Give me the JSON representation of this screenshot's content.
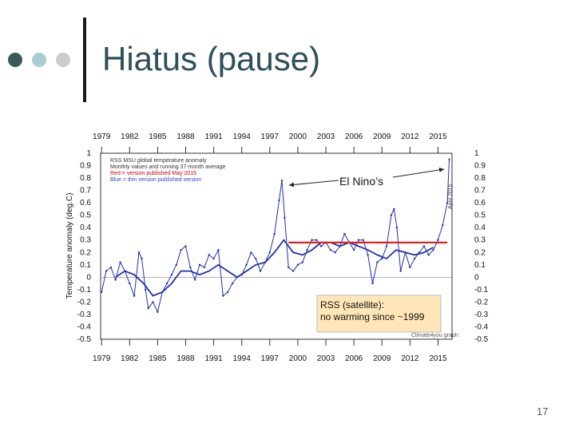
{
  "slide": {
    "title": "Hiatus (pause)",
    "page_number": "17",
    "bullet_colors": [
      "#3a5a5a",
      "#a9cdd2",
      "#cccccc"
    ]
  },
  "chart_data": {
    "type": "line",
    "ylabel": "Temperature anomaly (deg.C)",
    "xlim": [
      1978.9,
      2016.5
    ],
    "ylim": [
      -0.5,
      1.0
    ],
    "x_ticks": [
      "1979",
      "1982",
      "1985",
      "1988",
      "1991",
      "1994",
      "1997",
      "2000",
      "2003",
      "2006",
      "2009",
      "2012",
      "2015"
    ],
    "y_ticks_left": [
      "1",
      "0.9",
      "0.8",
      "0.7",
      "0.6",
      "0.5",
      "0.4",
      "0.3",
      "0.2",
      "0.1",
      "0",
      "-0.1",
      "-0.2",
      "-0.3",
      "-0.4",
      "-0.5"
    ],
    "y_ticks_right": [
      "1",
      "0.9",
      "0.8",
      "0.7",
      "0.6",
      "0.5",
      "0.4",
      "0.3",
      "0.2",
      "0.1",
      "0",
      "-0.1",
      "-0.2",
      "-0.3",
      "-0.4",
      "-0.5"
    ],
    "legend": [
      {
        "text": "RSS MSU global temperature anomaly",
        "color": "#333333"
      },
      {
        "text": "Monthly values and running 37-month average",
        "color": "#333333"
      },
      {
        "text": "Red = version published May 2015",
        "color": "#cc0000"
      },
      {
        "text": "Blue = thin version published version",
        "color": "#3344cc"
      }
    ],
    "vertical_note": "April 2015",
    "credit": "Climate4you graph",
    "series": [
      {
        "name": "Monthly values",
        "color": "#2233aa",
        "x": [
          1979.0,
          1979.5,
          1980.0,
          1980.5,
          1981.0,
          1981.5,
          1982.0,
          1982.5,
          1983.0,
          1983.3,
          1983.7,
          1984.0,
          1984.5,
          1985.0,
          1985.5,
          1986.0,
          1986.5,
          1987.0,
          1987.5,
          1988.0,
          1988.5,
          1989.0,
          1989.5,
          1990.0,
          1990.5,
          1991.0,
          1991.5,
          1992.0,
          1992.5,
          1993.0,
          1993.5,
          1994.0,
          1994.5,
          1995.0,
          1995.5,
          1996.0,
          1996.5,
          1997.0,
          1997.5,
          1998.0,
          1998.3,
          1998.6,
          1999.0,
          1999.5,
          2000.0,
          2000.5,
          2001.0,
          2001.5,
          2002.0,
          2002.5,
          2003.0,
          2003.5,
          2004.0,
          2004.5,
          2005.0,
          2005.5,
          2006.0,
          2006.5,
          2007.0,
          2007.5,
          2008.0,
          2008.5,
          2009.0,
          2009.5,
          2010.0,
          2010.3,
          2010.6,
          2011.0,
          2011.5,
          2012.0,
          2012.5,
          2013.0,
          2013.5,
          2014.0,
          2014.5,
          2015.0,
          2015.5,
          2016.0,
          2016.2
        ],
        "y": [
          -0.12,
          0.05,
          0.08,
          -0.02,
          0.12,
          0.05,
          -0.05,
          -0.15,
          0.2,
          0.15,
          -0.1,
          -0.25,
          -0.2,
          -0.28,
          -0.12,
          -0.05,
          0.02,
          0.1,
          0.22,
          0.25,
          0.08,
          -0.02,
          0.1,
          0.08,
          0.18,
          0.15,
          0.22,
          -0.15,
          -0.12,
          -0.05,
          0.0,
          0.02,
          0.1,
          0.2,
          0.15,
          0.05,
          0.12,
          0.2,
          0.35,
          0.62,
          0.78,
          0.48,
          0.08,
          0.05,
          0.1,
          0.12,
          0.22,
          0.3,
          0.3,
          0.25,
          0.28,
          0.22,
          0.2,
          0.25,
          0.35,
          0.28,
          0.22,
          0.3,
          0.3,
          0.18,
          -0.05,
          0.12,
          0.15,
          0.25,
          0.5,
          0.55,
          0.4,
          0.05,
          0.2,
          0.08,
          0.15,
          0.2,
          0.25,
          0.18,
          0.22,
          0.3,
          0.42,
          0.6,
          0.95
        ]
      },
      {
        "name": "Running 37-month average",
        "color": "#2233aa",
        "x": [
          1980.5,
          1981.5,
          1982.5,
          1983.5,
          1984.5,
          1985.5,
          1986.5,
          1987.5,
          1988.5,
          1989.5,
          1990.5,
          1991.5,
          1992.5,
          1993.5,
          1994.5,
          1995.5,
          1996.5,
          1997.5,
          1998.5,
          1999.5,
          2000.5,
          2001.5,
          2002.5,
          2003.5,
          2004.5,
          2005.5,
          2006.5,
          2007.5,
          2008.5,
          2009.5,
          2010.5,
          2011.5,
          2012.5,
          2013.5,
          2014.5
        ],
        "y": [
          0.0,
          0.05,
          0.02,
          -0.05,
          -0.15,
          -0.12,
          -0.05,
          0.05,
          0.05,
          0.02,
          0.05,
          0.1,
          0.05,
          0.0,
          0.05,
          0.1,
          0.12,
          0.2,
          0.3,
          0.2,
          0.18,
          0.22,
          0.28,
          0.28,
          0.25,
          0.28,
          0.25,
          0.22,
          0.18,
          0.15,
          0.22,
          0.2,
          0.18,
          0.2,
          0.24
        ]
      }
    ],
    "trend_line": {
      "name": "Hiatus level",
      "color": "#dd2222",
      "x": [
        1999.0,
        2016.0
      ],
      "y": [
        0.28,
        0.28
      ]
    },
    "annotations": [
      {
        "text": "El Nino’s"
      },
      {
        "text": "RSS (satellite):"
      },
      {
        "text": "no warming since ~1999"
      }
    ]
  }
}
